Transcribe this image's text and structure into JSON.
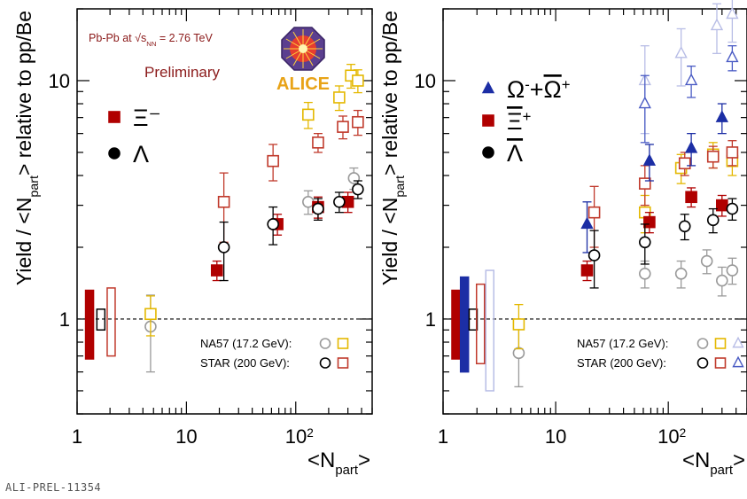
{
  "figure_id": "ALI-PREL-11354",
  "colors": {
    "red": "#b00000",
    "black": "#000000",
    "blue": "#1c2ea5",
    "na57_lambda": "#9a9a9a",
    "na57_xi": "#e4b800",
    "star_xi": "#c0392b",
    "na57_omega": "#b8bde6",
    "star_omega": "#4a5bc4",
    "alice_gold": "#e8a317",
    "preliminary": "#8b1a1a"
  },
  "chart_data": [
    {
      "type": "scatter",
      "panel": "left",
      "x_scale": "log",
      "y_scale": "log",
      "xlim": [
        1,
        500
      ],
      "ylim": [
        0.4,
        20
      ],
      "xticks": [
        {
          "value": 1,
          "label": "1"
        },
        {
          "value": 10,
          "label": "10"
        },
        {
          "value": 100,
          "label": "10²"
        }
      ],
      "yticks": [
        {
          "value": 1,
          "label": "1"
        },
        {
          "value": 10,
          "label": "10"
        }
      ],
      "xlabel": "<N_part>",
      "ylabel": "Yield / <N_part> relative to pp/Be",
      "reference_line": 1,
      "system_label": "Pb-Pb at √s_NN = 2.76 TeV",
      "preliminary_label": "Preliminary",
      "logo_label": "ALICE",
      "legend": [
        {
          "label": "Ξ⁻",
          "marker": "square",
          "filled": true,
          "color": "#b00000"
        },
        {
          "label": "Λ",
          "marker": "circle",
          "filled": true,
          "color": "#000000"
        }
      ],
      "ref_legend": [
        {
          "label": "NA57 (17.2 GeV):",
          "markers": [
            {
              "marker": "circle",
              "color": "#9a9a9a"
            },
            {
              "marker": "square",
              "color": "#e4b800"
            }
          ]
        },
        {
          "label": "STAR (200 GeV):",
          "markers": [
            {
              "marker": "circle",
              "color": "#000000"
            },
            {
              "marker": "square",
              "color": "#c0392b"
            }
          ]
        }
      ],
      "norm_boxes": [
        {
          "x": 1.3,
          "low": 0.68,
          "high": 1.32,
          "color": "#b00000",
          "filled": true
        },
        {
          "x": 1.65,
          "low": 0.9,
          "high": 1.1,
          "color": "#000000",
          "filled": false
        },
        {
          "x": 2.05,
          "low": 0.7,
          "high": 1.35,
          "color": "#c0392b",
          "filled": false
        }
      ],
      "series": [
        {
          "name": "Ξ⁻",
          "marker": "square",
          "filled": true,
          "color": "#b00000",
          "points": [
            {
              "x": 19,
              "y": 1.6,
              "err": 0.15
            },
            {
              "x": 68,
              "y": 2.5,
              "err": 0.25
            },
            {
              "x": 160,
              "y": 2.95,
              "err": 0.3
            },
            {
              "x": 300,
              "y": 3.1,
              "err": 0.3
            }
          ]
        },
        {
          "name": "Λ",
          "marker": "circle",
          "filled": false,
          "color": "#000000",
          "points": [
            {
              "x": 22,
              "y": 2.0,
              "err": 0.55
            },
            {
              "x": 62,
              "y": 2.5,
              "err": 0.45
            },
            {
              "x": 160,
              "y": 2.9,
              "err": 0.3
            },
            {
              "x": 250,
              "y": 3.1,
              "err": 0.3
            },
            {
              "x": 370,
              "y": 3.5,
              "err": 0.3
            }
          ]
        },
        {
          "name": "NA57 Λ",
          "marker": "circle",
          "filled": false,
          "color": "#9a9a9a",
          "points": [
            {
              "x": 4.7,
              "y": 0.93,
              "err": 0.33
            },
            {
              "x": 130,
              "y": 3.1,
              "err": 0.35
            },
            {
              "x": 340,
              "y": 3.9,
              "err": 0.4
            }
          ]
        },
        {
          "name": "NA57 Ξ",
          "marker": "square",
          "filled": false,
          "color": "#e4b800",
          "points": [
            {
              "x": 4.7,
              "y": 1.05,
              "err": 0.2
            },
            {
              "x": 130,
              "y": 7.2,
              "err": 0.9
            },
            {
              "x": 250,
              "y": 8.5,
              "err": 1.0
            },
            {
              "x": 320,
              "y": 10.5,
              "err": 1.2
            },
            {
              "x": 370,
              "y": 10.0,
              "err": 1.1
            }
          ]
        },
        {
          "name": "STAR Ξ",
          "marker": "square",
          "filled": false,
          "color": "#c0392b",
          "points": [
            {
              "x": 22,
              "y": 3.1,
              "err": 1.0
            },
            {
              "x": 62,
              "y": 4.6,
              "err": 0.8
            },
            {
              "x": 160,
              "y": 5.5,
              "err": 0.5
            },
            {
              "x": 270,
              "y": 6.4,
              "err": 0.7
            },
            {
              "x": 370,
              "y": 6.7,
              "err": 0.8
            }
          ]
        }
      ]
    },
    {
      "type": "scatter",
      "panel": "right",
      "x_scale": "log",
      "y_scale": "log",
      "xlim": [
        1,
        500
      ],
      "ylim": [
        0.4,
        20
      ],
      "xticks": [
        {
          "value": 1,
          "label": "1"
        },
        {
          "value": 10,
          "label": "10"
        },
        {
          "value": 100,
          "label": "10²"
        }
      ],
      "yticks": [
        {
          "value": 1,
          "label": "1"
        },
        {
          "value": 10,
          "label": "10"
        }
      ],
      "xlabel": "<N_part>",
      "ylabel": "Yield / <N_part> relative to pp/Be",
      "reference_line": 1,
      "legend": [
        {
          "label": "Ω⁻+Ω̄⁺",
          "marker": "triangle",
          "filled": true,
          "color": "#1c2ea5"
        },
        {
          "label": "Ξ̄⁺",
          "marker": "square",
          "filled": true,
          "color": "#b00000"
        },
        {
          "label": "Λ̄",
          "marker": "circle",
          "filled": true,
          "color": "#000000"
        }
      ],
      "ref_legend": [
        {
          "label": "NA57 (17.2 GeV):",
          "markers": [
            {
              "marker": "circle",
              "color": "#9a9a9a"
            },
            {
              "marker": "square",
              "color": "#e4b800"
            },
            {
              "marker": "triangle",
              "color": "#b8bde6"
            }
          ]
        },
        {
          "label": "STAR (200 GeV):",
          "markers": [
            {
              "marker": "circle",
              "color": "#000000"
            },
            {
              "marker": "square",
              "color": "#c0392b"
            },
            {
              "marker": "triangle",
              "color": "#4a5bc4"
            }
          ]
        }
      ],
      "norm_boxes": [
        {
          "x": 1.3,
          "low": 0.68,
          "high": 1.32,
          "color": "#b00000",
          "filled": true
        },
        {
          "x": 1.55,
          "low": 0.6,
          "high": 1.5,
          "color": "#1c2ea5",
          "filled": true
        },
        {
          "x": 1.85,
          "low": 0.9,
          "high": 1.1,
          "color": "#000000",
          "filled": false
        },
        {
          "x": 2.15,
          "low": 0.65,
          "high": 1.4,
          "color": "#c0392b",
          "filled": false
        },
        {
          "x": 2.6,
          "low": 0.5,
          "high": 1.6,
          "color": "#b8bde6",
          "filled": false
        }
      ],
      "series": [
        {
          "name": "Ω⁻+Ω̄⁺",
          "marker": "triangle",
          "filled": true,
          "color": "#1c2ea5",
          "points": [
            {
              "x": 19,
              "y": 2.5,
              "err": 0.6
            },
            {
              "x": 68,
              "y": 4.6,
              "err": 0.8
            },
            {
              "x": 160,
              "y": 5.2,
              "err": 0.8
            },
            {
              "x": 300,
              "y": 7.0,
              "err": 1.0
            }
          ]
        },
        {
          "name": "Ξ̄⁺",
          "marker": "square",
          "filled": true,
          "color": "#b00000",
          "points": [
            {
              "x": 19,
              "y": 1.6,
              "err": 0.15
            },
            {
              "x": 68,
              "y": 2.55,
              "err": 0.25
            },
            {
              "x": 160,
              "y": 3.25,
              "err": 0.3
            },
            {
              "x": 300,
              "y": 3.0,
              "err": 0.3
            }
          ]
        },
        {
          "name": "Λ̄",
          "marker": "circle",
          "filled": false,
          "color": "#000000",
          "points": [
            {
              "x": 22,
              "y": 1.85,
              "err": 0.5
            },
            {
              "x": 62,
              "y": 2.1,
              "err": 0.4
            },
            {
              "x": 140,
              "y": 2.45,
              "err": 0.3
            },
            {
              "x": 250,
              "y": 2.6,
              "err": 0.3
            },
            {
              "x": 370,
              "y": 2.9,
              "err": 0.3
            }
          ]
        },
        {
          "name": "NA57 Λ̄",
          "marker": "circle",
          "filled": false,
          "color": "#9a9a9a",
          "points": [
            {
              "x": 4.7,
              "y": 0.72,
              "err": 0.2
            },
            {
              "x": 62,
              "y": 1.55,
              "err": 0.2
            },
            {
              "x": 130,
              "y": 1.55,
              "err": 0.2
            },
            {
              "x": 220,
              "y": 1.75,
              "err": 0.2
            },
            {
              "x": 300,
              "y": 1.45,
              "err": 0.2
            },
            {
              "x": 370,
              "y": 1.6,
              "err": 0.2
            }
          ]
        },
        {
          "name": "NA57 Ξ̄",
          "marker": "square",
          "filled": false,
          "color": "#e4b800",
          "points": [
            {
              "x": 4.7,
              "y": 0.95,
              "err": 0.2
            },
            {
              "x": 62,
              "y": 2.8,
              "err": 0.5
            },
            {
              "x": 130,
              "y": 4.3,
              "err": 0.6
            },
            {
              "x": 250,
              "y": 4.9,
              "err": 0.6
            },
            {
              "x": 370,
              "y": 4.6,
              "err": 0.6
            }
          ]
        },
        {
          "name": "STAR Ξ̄",
          "marker": "square",
          "filled": false,
          "color": "#c0392b",
          "points": [
            {
              "x": 22,
              "y": 2.8,
              "err": 0.8
            },
            {
              "x": 62,
              "y": 3.7,
              "err": 0.7
            },
            {
              "x": 140,
              "y": 4.5,
              "err": 0.5
            },
            {
              "x": 250,
              "y": 4.8,
              "err": 0.5
            },
            {
              "x": 370,
              "y": 5.0,
              "err": 0.6
            }
          ]
        },
        {
          "name": "NA57 Ω",
          "marker": "triangle",
          "filled": false,
          "color": "#b8bde6",
          "points": [
            {
              "x": 62,
              "y": 10.0,
              "err": 4.0
            },
            {
              "x": 130,
              "y": 13.0,
              "err": 3.5
            },
            {
              "x": 270,
              "y": 17.0,
              "err": 4.0
            },
            {
              "x": 370,
              "y": 19.0,
              "err": 4.5
            }
          ]
        },
        {
          "name": "STAR Ω",
          "marker": "triangle",
          "filled": false,
          "color": "#4a5bc4",
          "points": [
            {
              "x": 62,
              "y": 8.0,
              "err": 2.5
            },
            {
              "x": 160,
              "y": 10.0,
              "err": 1.5
            },
            {
              "x": 370,
              "y": 12.5,
              "err": 1.5
            }
          ]
        }
      ]
    }
  ]
}
